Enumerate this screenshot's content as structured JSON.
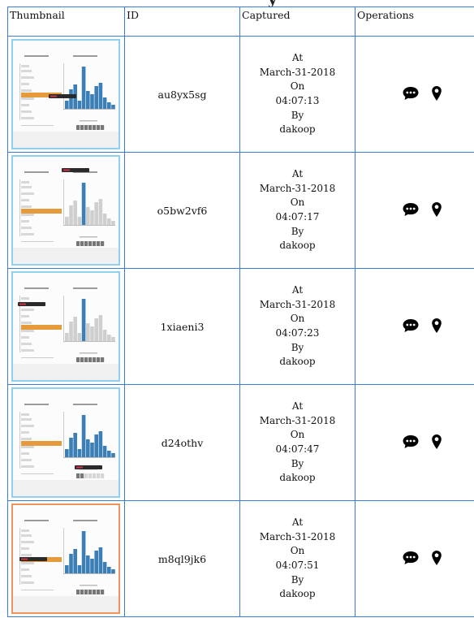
{
  "headers": {
    "thumbnail": "Thumbnail",
    "id": "ID",
    "captured": "Captured",
    "operations": "Operations"
  },
  "captured_labels": {
    "at": "At",
    "on": "On",
    "by": "By"
  },
  "rows": [
    {
      "id": "au8yx5sg",
      "date": "March-31-2018",
      "time": "04:07:13",
      "user": "dakoop",
      "thumb_border": "#8fd0ec",
      "comment_icon": "comment-icon",
      "location_icon": "map-marker-icon"
    },
    {
      "id": "o5bw2vf6",
      "date": "March-31-2018",
      "time": "04:07:17",
      "user": "dakoop",
      "thumb_border": "#8fd0ec",
      "comment_icon": "comment-icon",
      "location_icon": "map-marker-icon"
    },
    {
      "id": "1xiaeni3",
      "date": "March-31-2018",
      "time": "04:07:23",
      "user": "dakoop",
      "thumb_border": "#8fd0ec",
      "comment_icon": "comment-icon",
      "location_icon": "map-marker-icon"
    },
    {
      "id": "d24othv",
      "date": "March-31-2018",
      "time": "04:07:47",
      "user": "dakoop",
      "thumb_border": "#8fd0ec",
      "comment_icon": "comment-icon",
      "location_icon": "map-marker-icon"
    },
    {
      "id": "m8ql9jk6",
      "date": "March-31-2018",
      "time": "04:07:51",
      "user": "dakoop",
      "thumb_border": "#f0945e",
      "comment_icon": "comment-icon",
      "location_icon": "map-marker-icon"
    }
  ],
  "colors": {
    "table_border": "#3a7bd5",
    "bar_blue": "#3b7fb6",
    "bar_orange": "#e59a3c",
    "bar_gray": "#cfcfcf",
    "active_border": "#f0945e"
  }
}
